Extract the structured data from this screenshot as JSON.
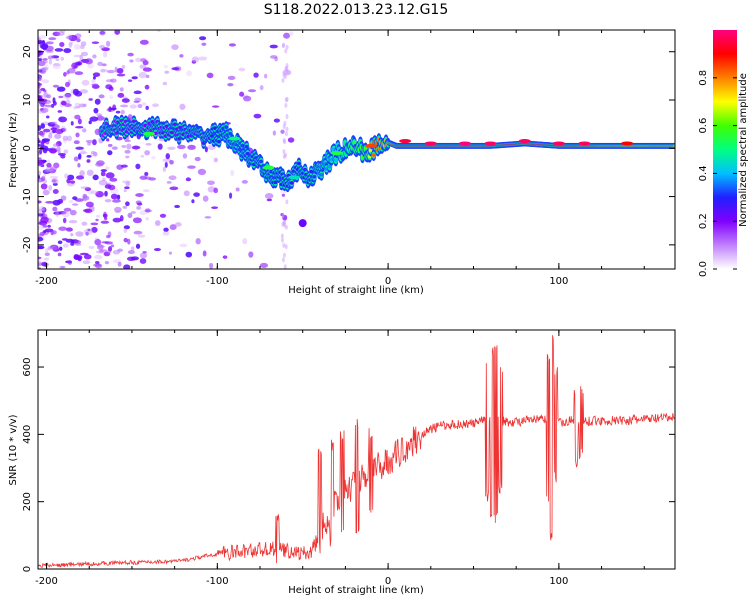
{
  "title": "S118.2022.013.23.12.G15",
  "chart_data": [
    {
      "type": "heatmap",
      "xlabel": "Height of straight line (km)",
      "ylabel": "Frequency (Hz)",
      "xlim": [
        -205,
        168
      ],
      "ylim": [
        -25,
        24.5
      ],
      "xticks": [
        -200,
        -100,
        0,
        100
      ],
      "yticks": [
        -20,
        -10,
        0,
        10,
        20
      ],
      "colorbar": {
        "label": "Normalized spectral amplitude",
        "range": [
          0,
          1
        ],
        "ticks": [
          "0.0",
          "0.2",
          "0.4",
          "0.6",
          "0.8"
        ],
        "tick_values": [
          0,
          0.2,
          0.4,
          0.6,
          0.8
        ],
        "colors": [
          "#ffffff",
          "#c080ff",
          "#8000ff",
          "#2020ff",
          "#00c0ff",
          "#00ff80",
          "#40ff00",
          "#ffff00",
          "#ff8000",
          "#ff0000",
          "#ff0080"
        ]
      },
      "ridge": {
        "x": [
          -168,
          -150,
          -130,
          -110,
          -95,
          -88,
          -80,
          -72,
          -65,
          -58,
          -52,
          -45,
          -40,
          -30,
          -20,
          -12,
          -8,
          -2,
          5,
          20,
          40,
          60,
          80,
          100,
          120,
          140,
          168
        ],
        "y": [
          4,
          4.5,
          4,
          2.5,
          3,
          0.5,
          -2,
          -5,
          -6,
          -7,
          -4.5,
          -6,
          -4.5,
          -1,
          0.5,
          -1,
          0.2,
          1.5,
          0.5,
          0.5,
          0.5,
          0.5,
          1,
          0.5,
          0.5,
          0.5,
          0.5
        ],
        "amplitude": [
          0.18,
          0.2,
          0.22,
          0.25,
          0.32,
          0.33,
          0.3,
          0.32,
          0.3,
          0.28,
          0.3,
          0.3,
          0.35,
          0.4,
          0.55,
          0.6,
          0.85,
          0.75,
          0.9,
          0.9,
          0.95,
          0.95,
          0.92,
          0.9,
          0.85,
          0.8,
          0.8
        ]
      }
    },
    {
      "type": "line",
      "xlabel": "Height of straight line (km)",
      "ylabel": "SNR (10 * v/v)",
      "xlim": [
        -205,
        168
      ],
      "ylim": [
        0,
        710
      ],
      "xticks": [
        -200,
        -100,
        0,
        100
      ],
      "yticks": [
        0,
        200,
        400,
        600
      ],
      "color": "#ee3333",
      "series": [
        {
          "x": [
            -205,
            -190,
            -175,
            -160,
            -145,
            -130,
            -120,
            -110,
            -100,
            -90,
            -80,
            -70,
            -60,
            -50,
            -45,
            -40,
            -35,
            -30,
            -25,
            -20,
            -15,
            -10,
            -5,
            0,
            10,
            20,
            25,
            30,
            40,
            50,
            55,
            60,
            63,
            67,
            70,
            80,
            90,
            96,
            100,
            105,
            110,
            112,
            115,
            120,
            130,
            140,
            150,
            160,
            168
          ],
          "y": [
            10,
            12,
            15,
            18,
            20,
            22,
            25,
            35,
            45,
            50,
            55,
            60,
            55,
            45,
            50,
            100,
            160,
            200,
            230,
            250,
            270,
            290,
            305,
            320,
            360,
            400,
            415,
            425,
            430,
            432,
            440,
            445,
            450,
            440,
            435,
            440,
            445,
            440,
            435,
            440,
            440,
            435,
            440,
            440,
            440,
            442,
            445,
            448,
            450
          ]
        }
      ],
      "spikes": [
        {
          "x": 58,
          "min": 200,
          "max": 620
        },
        {
          "x": 61,
          "min": 140,
          "max": 660
        },
        {
          "x": 63,
          "min": 130,
          "max": 690
        },
        {
          "x": 66,
          "min": 220,
          "max": 600
        },
        {
          "x": 94,
          "min": 200,
          "max": 640
        },
        {
          "x": 96,
          "min": 80,
          "max": 710
        },
        {
          "x": 98,
          "min": 250,
          "max": 600
        },
        {
          "x": 110,
          "min": 300,
          "max": 540
        },
        {
          "x": 113,
          "min": 320,
          "max": 550
        },
        {
          "x": -40,
          "min": 40,
          "max": 370
        },
        {
          "x": -33,
          "min": 60,
          "max": 390
        },
        {
          "x": -27,
          "min": 80,
          "max": 420
        },
        {
          "x": -18,
          "min": 100,
          "max": 450
        },
        {
          "x": -10,
          "min": 160,
          "max": 420
        },
        {
          "x": -65,
          "min": 10,
          "max": 170
        }
      ]
    }
  ]
}
